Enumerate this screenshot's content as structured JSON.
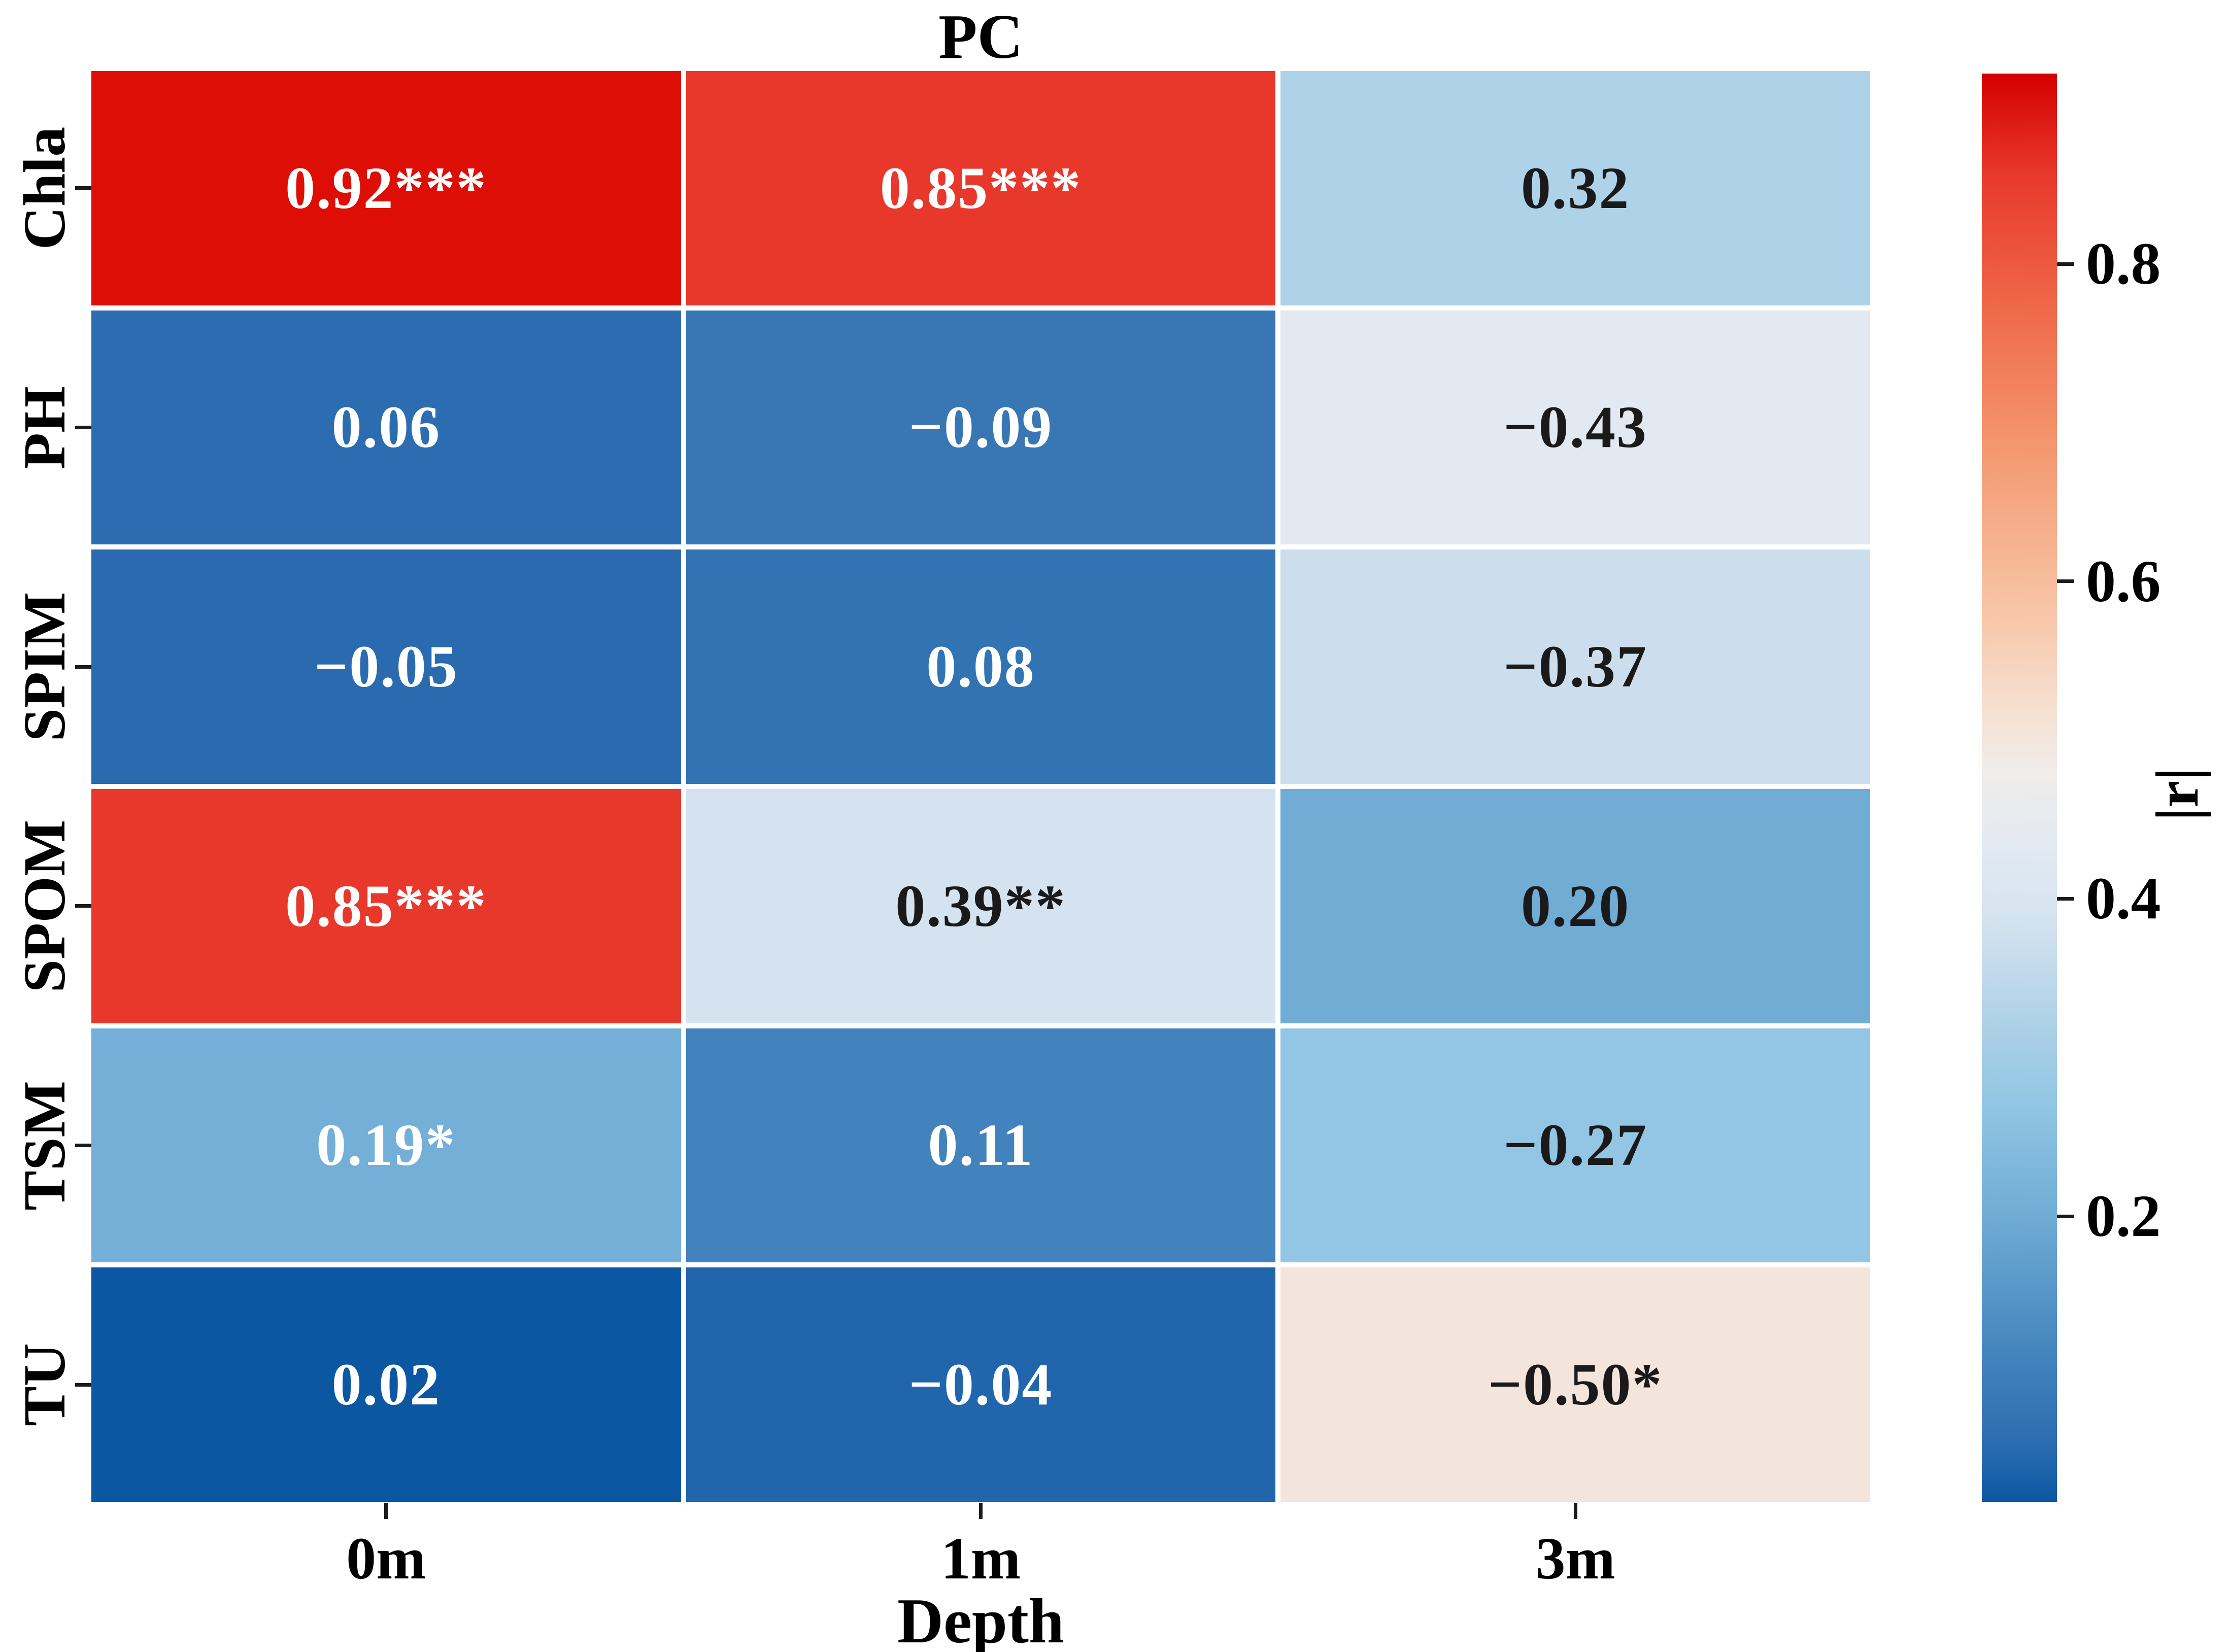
{
  "title": "PC",
  "xlabel": "Depth",
  "colorbar": {
    "label": "|r|",
    "vmin": 0.02,
    "vmax": 0.92,
    "ticks": [
      {
        "label": "0.8",
        "value": 0.8
      },
      {
        "label": "0.6",
        "value": 0.6
      },
      {
        "label": "0.4",
        "value": 0.4
      },
      {
        "label": "0.2",
        "value": 0.2
      }
    ],
    "gradient_stops": [
      "#D40000 0%",
      "#E8382C 7%",
      "#EF6747 16%",
      "#F49B74 27%",
      "#F7C3A4 37%",
      "#F6E2D4 45%",
      "#F0ECEA 49%",
      "#E2EAF2 54%",
      "#D5E3F0 59%",
      "#ABD0E6 67%",
      "#92C6E4 72%",
      "#70ACD4 80%",
      "#4283BD 90%",
      "#2C6DB1 96%",
      "#0B57A2 100%"
    ]
  },
  "chart_data": {
    "type": "heatmap",
    "title": "PC",
    "xlabel": "Depth",
    "colorbar_label": "|r|",
    "color_scale_range": [
      0.02,
      0.92
    ],
    "rows": [
      "Chla",
      "PH",
      "SPIM",
      "SPOM",
      "TSM",
      "TU"
    ],
    "columns": [
      "0m",
      "1m",
      "3m"
    ],
    "values": [
      [
        0.92,
        0.85,
        0.32
      ],
      [
        0.06,
        -0.09,
        -0.43
      ],
      [
        -0.05,
        0.08,
        -0.37
      ],
      [
        0.85,
        0.39,
        0.2
      ],
      [
        0.19,
        0.11,
        -0.27
      ],
      [
        0.02,
        -0.04,
        -0.5
      ]
    ],
    "labels": [
      [
        "0.92***",
        "0.85***",
        "0.32"
      ],
      [
        "0.06",
        "−0.09",
        "−0.43"
      ],
      [
        "−0.05",
        "0.08",
        "−0.37"
      ],
      [
        "0.85***",
        "0.39**",
        "0.20"
      ],
      [
        "0.19*",
        "0.11",
        "−0.27"
      ],
      [
        "0.02",
        "−0.04",
        "−0.50*"
      ]
    ],
    "cell_colors": [
      [
        "#DC0E06",
        "#E8382C",
        "#AED2E8"
      ],
      [
        "#2C6DB1",
        "#3877B4",
        "#E2E9F1"
      ],
      [
        "#2A6BAF",
        "#3274B3",
        "#CCDEED"
      ],
      [
        "#E8382C",
        "#D5E3F0",
        "#70ACD4"
      ],
      [
        "#74AFD7",
        "#4283BD",
        "#92C6E4"
      ],
      [
        "#0B57A2",
        "#2166AC",
        "#F4E5DC"
      ]
    ],
    "text_colors": [
      [
        "#ffffff",
        "#ffffff",
        "#1a1a1a"
      ],
      [
        "#ffffff",
        "#ffffff",
        "#1a1a1a"
      ],
      [
        "#ffffff",
        "#ffffff",
        "#1a1a1a"
      ],
      [
        "#ffffff",
        "#1a1a1a",
        "#1a1a1a"
      ],
      [
        "#ffffff",
        "#ffffff",
        "#1a1a1a"
      ],
      [
        "#ffffff",
        "#ffffff",
        "#1a1a1a"
      ]
    ]
  }
}
